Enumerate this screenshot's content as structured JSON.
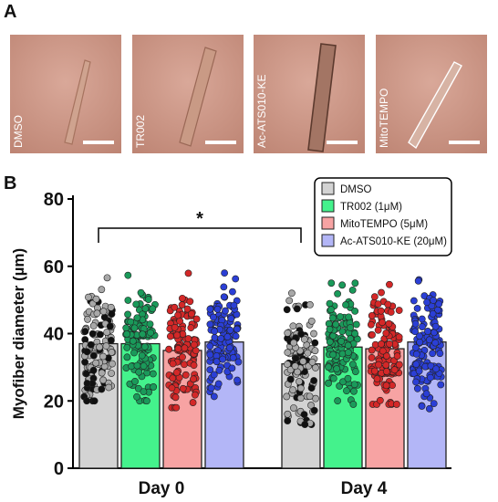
{
  "panel_a": {
    "letter": "A",
    "images": [
      {
        "label": "DMSO"
      },
      {
        "label": "TR002"
      },
      {
        "label": "Ac-ATS010-KE"
      },
      {
        "label": "MitoTEMPO"
      }
    ]
  },
  "panel_b": {
    "letter": "B"
  },
  "colors": {
    "DMSO": "#d3d3d3",
    "TR002": "#44f28c",
    "MitoTEMPO": "#f7a3a3",
    "Ac-ATS010-KE": "#b3b6f7",
    "dot_DMSO": "#a8a8a8",
    "dot_TR002": "#1a9a5a",
    "dot_MitoTEMPO": "#d42828",
    "dot_AcATS": "#2b3fd6",
    "micro_bg": "#c58c7c"
  },
  "chart_data": {
    "type": "bar",
    "ylabel": "Myofiber diameter (µm)",
    "ylim": [
      0,
      80
    ],
    "yticks": [
      0,
      20,
      40,
      60,
      80
    ],
    "categories": [
      "Day 0",
      "Day 4"
    ],
    "series": [
      {
        "name": "DMSO",
        "values": [
          37,
          31
        ],
        "range": [
          [
            20,
            58
          ],
          [
            13,
            52
          ]
        ]
      },
      {
        "name": "TR002 (1μM)",
        "values": [
          37,
          36
        ],
        "range": [
          [
            20,
            59
          ],
          [
            19,
            55
          ]
        ]
      },
      {
        "name": "MitoTEMPO (5μM)",
        "values": [
          35,
          35.5
        ],
        "range": [
          [
            18,
            58
          ],
          [
            19,
            61
          ]
        ]
      },
      {
        "name": "Ac-ATS010-KE (20μM)",
        "values": [
          37.5,
          37.5
        ],
        "range": [
          [
            21,
            58
          ],
          [
            17,
            56
          ]
        ]
      }
    ],
    "significance": {
      "label": "*",
      "from": "Day 0 DMSO",
      "to": "Day 4 DMSO"
    },
    "legend_position": "top-right"
  }
}
